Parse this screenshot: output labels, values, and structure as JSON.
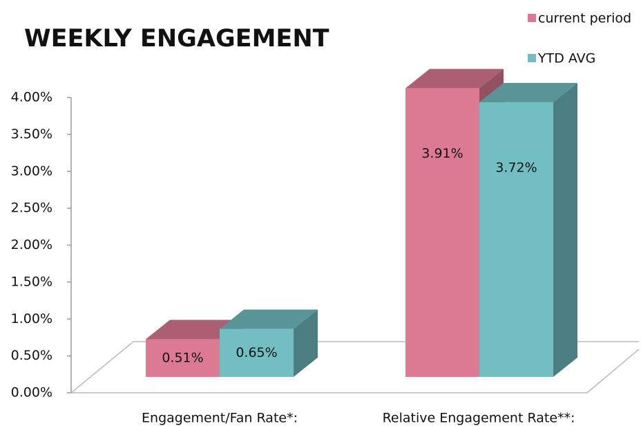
{
  "chart_data": {
    "type": "bar3d",
    "title": "WEEKLY ENGAGEMENT",
    "categories": [
      "Engagement/Fan Rate*:",
      "Relative Engagement Rate**:"
    ],
    "series": [
      {
        "name": "current period",
        "color": "#dc7a93",
        "values": [
          0.51,
          3.91
        ],
        "value_labels": [
          "0.51%",
          "3.91%"
        ]
      },
      {
        "name": "YTD AVG",
        "color": "#72bec3",
        "values": [
          0.65,
          3.72
        ],
        "value_labels": [
          "0.65%",
          "3.72%"
        ]
      }
    ],
    "ylim": [
      0,
      4
    ],
    "yticks": [
      {
        "value": 0,
        "label": "0.00%"
      },
      {
        "value": 0.5,
        "label": "0.50%"
      },
      {
        "value": 1,
        "label": "1.00%"
      },
      {
        "value": 1.5,
        "label": "1.50%"
      },
      {
        "value": 2,
        "label": "2.00%"
      },
      {
        "value": 2.5,
        "label": "2.50%"
      },
      {
        "value": 3,
        "label": "3.00%"
      },
      {
        "value": 3.5,
        "label": "3.50%"
      },
      {
        "value": 4,
        "label": "4.00%"
      }
    ],
    "legend": "top-right"
  }
}
